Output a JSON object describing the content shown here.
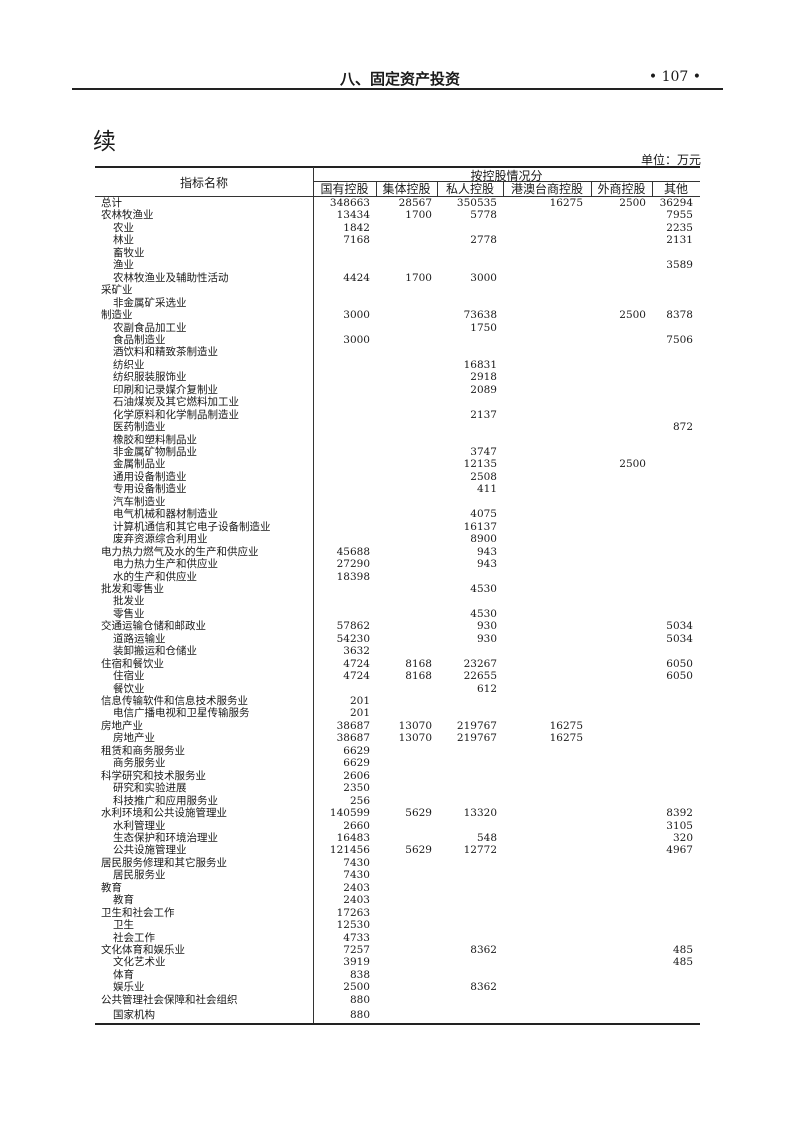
{
  "header": {
    "running_title": "八、固定资产投资",
    "page_number": "• 107 •"
  },
  "title": "续",
  "unit": "单位：万元",
  "table": {
    "name_header": "指标名称",
    "group_header": "按控股情况分",
    "columns": [
      "国有控股",
      "集体控股",
      "私人控股",
      "港澳台商控股",
      "外商控股",
      "其他"
    ],
    "rows": [
      {
        "name": "总计",
        "level": 0,
        "values": [
          "348663",
          "28567",
          "350535",
          "16275",
          "2500",
          "36294"
        ]
      },
      {
        "name": "农林牧渔业",
        "level": 0,
        "values": [
          "13434",
          "1700",
          "5778",
          "",
          "",
          "7955"
        ]
      },
      {
        "name": "农业",
        "level": 1,
        "values": [
          "1842",
          "",
          "",
          "",
          "",
          "2235"
        ]
      },
      {
        "name": "林业",
        "level": 1,
        "values": [
          "7168",
          "",
          "2778",
          "",
          "",
          "2131"
        ]
      },
      {
        "name": "畜牧业",
        "level": 1,
        "values": [
          "",
          "",
          "",
          "",
          "",
          ""
        ]
      },
      {
        "name": "渔业",
        "level": 1,
        "values": [
          "",
          "",
          "",
          "",
          "",
          "3589"
        ]
      },
      {
        "name": "农林牧渔业及辅助性活动",
        "level": 1,
        "values": [
          "4424",
          "1700",
          "3000",
          "",
          "",
          ""
        ]
      },
      {
        "name": "采矿业",
        "level": 0,
        "values": [
          "",
          "",
          "",
          "",
          "",
          ""
        ]
      },
      {
        "name": "非金属矿采选业",
        "level": 1,
        "values": [
          "",
          "",
          "",
          "",
          "",
          ""
        ]
      },
      {
        "name": "制造业",
        "level": 0,
        "values": [
          "3000",
          "",
          "73638",
          "",
          "2500",
          "8378"
        ]
      },
      {
        "name": "农副食品加工业",
        "level": 1,
        "values": [
          "",
          "",
          "1750",
          "",
          "",
          ""
        ]
      },
      {
        "name": "食品制造业",
        "level": 1,
        "values": [
          "3000",
          "",
          "",
          "",
          "",
          "7506"
        ]
      },
      {
        "name": "酒饮料和精致茶制造业",
        "level": 1,
        "values": [
          "",
          "",
          "",
          "",
          "",
          ""
        ]
      },
      {
        "name": "纺织业",
        "level": 1,
        "values": [
          "",
          "",
          "16831",
          "",
          "",
          ""
        ]
      },
      {
        "name": "纺织服装服饰业",
        "level": 1,
        "values": [
          "",
          "",
          "2918",
          "",
          "",
          ""
        ]
      },
      {
        "name": "印刷和记录媒介复制业",
        "level": 1,
        "values": [
          "",
          "",
          "2089",
          "",
          "",
          ""
        ]
      },
      {
        "name": "石油煤炭及其它燃料加工业",
        "level": 1,
        "values": [
          "",
          "",
          "",
          "",
          "",
          ""
        ]
      },
      {
        "name": "化学原料和化学制品制造业",
        "level": 1,
        "values": [
          "",
          "",
          "2137",
          "",
          "",
          ""
        ]
      },
      {
        "name": "医药制造业",
        "level": 1,
        "values": [
          "",
          "",
          "",
          "",
          "",
          "872"
        ]
      },
      {
        "name": "橡胶和塑料制品业",
        "level": 1,
        "values": [
          "",
          "",
          "",
          "",
          "",
          ""
        ]
      },
      {
        "name": "非金属矿物制品业",
        "level": 1,
        "values": [
          "",
          "",
          "3747",
          "",
          "",
          ""
        ]
      },
      {
        "name": "金属制品业",
        "level": 1,
        "values": [
          "",
          "",
          "12135",
          "",
          "2500",
          ""
        ]
      },
      {
        "name": "通用设备制造业",
        "level": 1,
        "values": [
          "",
          "",
          "2508",
          "",
          "",
          ""
        ]
      },
      {
        "name": "专用设备制造业",
        "level": 1,
        "values": [
          "",
          "",
          "411",
          "",
          "",
          ""
        ]
      },
      {
        "name": "汽车制造业",
        "level": 1,
        "values": [
          "",
          "",
          "",
          "",
          "",
          ""
        ]
      },
      {
        "name": "电气机械和器材制造业",
        "level": 1,
        "values": [
          "",
          "",
          "4075",
          "",
          "",
          ""
        ]
      },
      {
        "name": "计算机通信和其它电子设备制造业",
        "level": 1,
        "values": [
          "",
          "",
          "16137",
          "",
          "",
          ""
        ]
      },
      {
        "name": "废弃资源综合利用业",
        "level": 1,
        "values": [
          "",
          "",
          "8900",
          "",
          "",
          ""
        ]
      },
      {
        "name": "电力热力燃气及水的生产和供应业",
        "level": 0,
        "values": [
          "45688",
          "",
          "943",
          "",
          "",
          ""
        ]
      },
      {
        "name": "电力热力生产和供应业",
        "level": 1,
        "values": [
          "27290",
          "",
          "943",
          "",
          "",
          ""
        ]
      },
      {
        "name": "水的生产和供应业",
        "level": 1,
        "values": [
          "18398",
          "",
          "",
          "",
          "",
          ""
        ]
      },
      {
        "name": "批发和零售业",
        "level": 0,
        "values": [
          "",
          "",
          "4530",
          "",
          "",
          ""
        ]
      },
      {
        "name": "批发业",
        "level": 1,
        "values": [
          "",
          "",
          "",
          "",
          "",
          ""
        ]
      },
      {
        "name": "零售业",
        "level": 1,
        "values": [
          "",
          "",
          "4530",
          "",
          "",
          ""
        ]
      },
      {
        "name": "交通运输仓储和邮政业",
        "level": 0,
        "values": [
          "57862",
          "",
          "930",
          "",
          "",
          "5034"
        ]
      },
      {
        "name": "道路运输业",
        "level": 1,
        "values": [
          "54230",
          "",
          "930",
          "",
          "",
          "5034"
        ]
      },
      {
        "name": "装卸搬运和仓储业",
        "level": 1,
        "values": [
          "3632",
          "",
          "",
          "",
          "",
          ""
        ]
      },
      {
        "name": "住宿和餐饮业",
        "level": 0,
        "values": [
          "4724",
          "8168",
          "23267",
          "",
          "",
          "6050"
        ]
      },
      {
        "name": "住宿业",
        "level": 1,
        "values": [
          "4724",
          "8168",
          "22655",
          "",
          "",
          "6050"
        ]
      },
      {
        "name": "餐饮业",
        "level": 1,
        "values": [
          "",
          "",
          "612",
          "",
          "",
          ""
        ]
      },
      {
        "name": "信息传输软件和信息技术服务业",
        "level": 0,
        "values": [
          "201",
          "",
          "",
          "",
          "",
          ""
        ]
      },
      {
        "name": "电信广播电视和卫星传输服务",
        "level": 1,
        "values": [
          "201",
          "",
          "",
          "",
          "",
          ""
        ]
      },
      {
        "name": "房地产业",
        "level": 0,
        "values": [
          "38687",
          "13070",
          "219767",
          "16275",
          "",
          ""
        ]
      },
      {
        "name": "房地产业",
        "level": 1,
        "values": [
          "38687",
          "13070",
          "219767",
          "16275",
          "",
          ""
        ]
      },
      {
        "name": "租赁和商务服务业",
        "level": 0,
        "values": [
          "6629",
          "",
          "",
          "",
          "",
          ""
        ]
      },
      {
        "name": "商务服务业",
        "level": 1,
        "values": [
          "6629",
          "",
          "",
          "",
          "",
          ""
        ]
      },
      {
        "name": "科学研究和技术服务业",
        "level": 0,
        "values": [
          "2606",
          "",
          "",
          "",
          "",
          ""
        ]
      },
      {
        "name": "研究和实验进展",
        "level": 1,
        "values": [
          "2350",
          "",
          "",
          "",
          "",
          ""
        ]
      },
      {
        "name": "科技推广和应用服务业",
        "level": 1,
        "values": [
          "256",
          "",
          "",
          "",
          "",
          ""
        ]
      },
      {
        "name": "水利环境和公共设施管理业",
        "level": 0,
        "values": [
          "140599",
          "5629",
          "13320",
          "",
          "",
          "8392"
        ]
      },
      {
        "name": "水利管理业",
        "level": 1,
        "values": [
          "2660",
          "",
          "",
          "",
          "",
          "3105"
        ]
      },
      {
        "name": "生态保护和环境治理业",
        "level": 1,
        "values": [
          "16483",
          "",
          "548",
          "",
          "",
          "320"
        ]
      },
      {
        "name": "公共设施管理业",
        "level": 1,
        "values": [
          "121456",
          "5629",
          "12772",
          "",
          "",
          "4967"
        ]
      },
      {
        "name": "居民服务修理和其它服务业",
        "level": 0,
        "values": [
          "7430",
          "",
          "",
          "",
          "",
          ""
        ]
      },
      {
        "name": "居民服务业",
        "level": 1,
        "values": [
          "7430",
          "",
          "",
          "",
          "",
          ""
        ]
      },
      {
        "name": "教育",
        "level": 0,
        "values": [
          "2403",
          "",
          "",
          "",
          "",
          ""
        ]
      },
      {
        "name": "教育",
        "level": 1,
        "values": [
          "2403",
          "",
          "",
          "",
          "",
          ""
        ]
      },
      {
        "name": "卫生和社会工作",
        "level": 0,
        "values": [
          "17263",
          "",
          "",
          "",
          "",
          ""
        ]
      },
      {
        "name": "卫生",
        "level": 1,
        "values": [
          "12530",
          "",
          "",
          "",
          "",
          ""
        ]
      },
      {
        "name": "社会工作",
        "level": 1,
        "values": [
          "4733",
          "",
          "",
          "",
          "",
          ""
        ]
      },
      {
        "name": "文化体育和娱乐业",
        "level": 0,
        "values": [
          "7257",
          "",
          "8362",
          "",
          "",
          "485"
        ]
      },
      {
        "name": "文化艺术业",
        "level": 1,
        "values": [
          "3919",
          "",
          "",
          "",
          "",
          "485"
        ]
      },
      {
        "name": "体育",
        "level": 1,
        "values": [
          "838",
          "",
          "",
          "",
          "",
          ""
        ]
      },
      {
        "name": "娱乐业",
        "level": 1,
        "values": [
          "2500",
          "",
          "8362",
          "",
          "",
          ""
        ]
      },
      {
        "name": "公共管理社会保障和社会组织",
        "level": 0,
        "values": [
          "880",
          "",
          "",
          "",
          "",
          ""
        ]
      },
      {
        "name": "国家机构",
        "level": 1,
        "values": [
          "880",
          "",
          "",
          "",
          "",
          ""
        ]
      }
    ]
  }
}
